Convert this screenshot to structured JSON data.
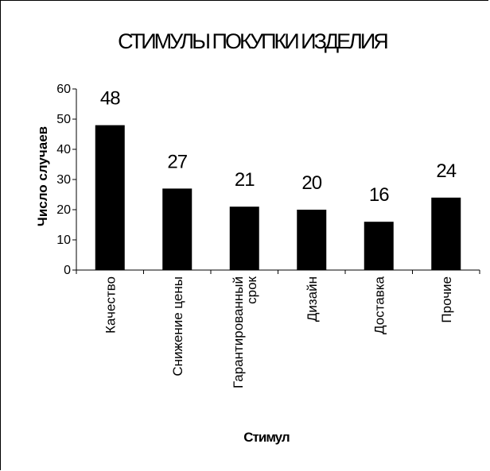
{
  "chart_data": {
    "type": "bar",
    "title": "СТИМУЛЫ ПОКУПКИ ИЗДЕЛИЯ",
    "xlabel": "Стимул",
    "ylabel": "Число случаев",
    "categories": [
      "Качество",
      "Снижение цены",
      "Гарантированный срок",
      "Дизайн",
      "Доставка",
      "Прочие"
    ],
    "category_lines": [
      [
        "Качество"
      ],
      [
        "Снижение цены"
      ],
      [
        "Гарантированный",
        "срок"
      ],
      [
        "Дизайн"
      ],
      [
        "Доставка"
      ],
      [
        "Прочие"
      ]
    ],
    "values": [
      48,
      27,
      21,
      20,
      16,
      24
    ],
    "ylim": [
      0,
      60
    ],
    "yticks": [
      0,
      10,
      20,
      30,
      40,
      50,
      60
    ],
    "grid": false,
    "bar_color": "#000000"
  }
}
